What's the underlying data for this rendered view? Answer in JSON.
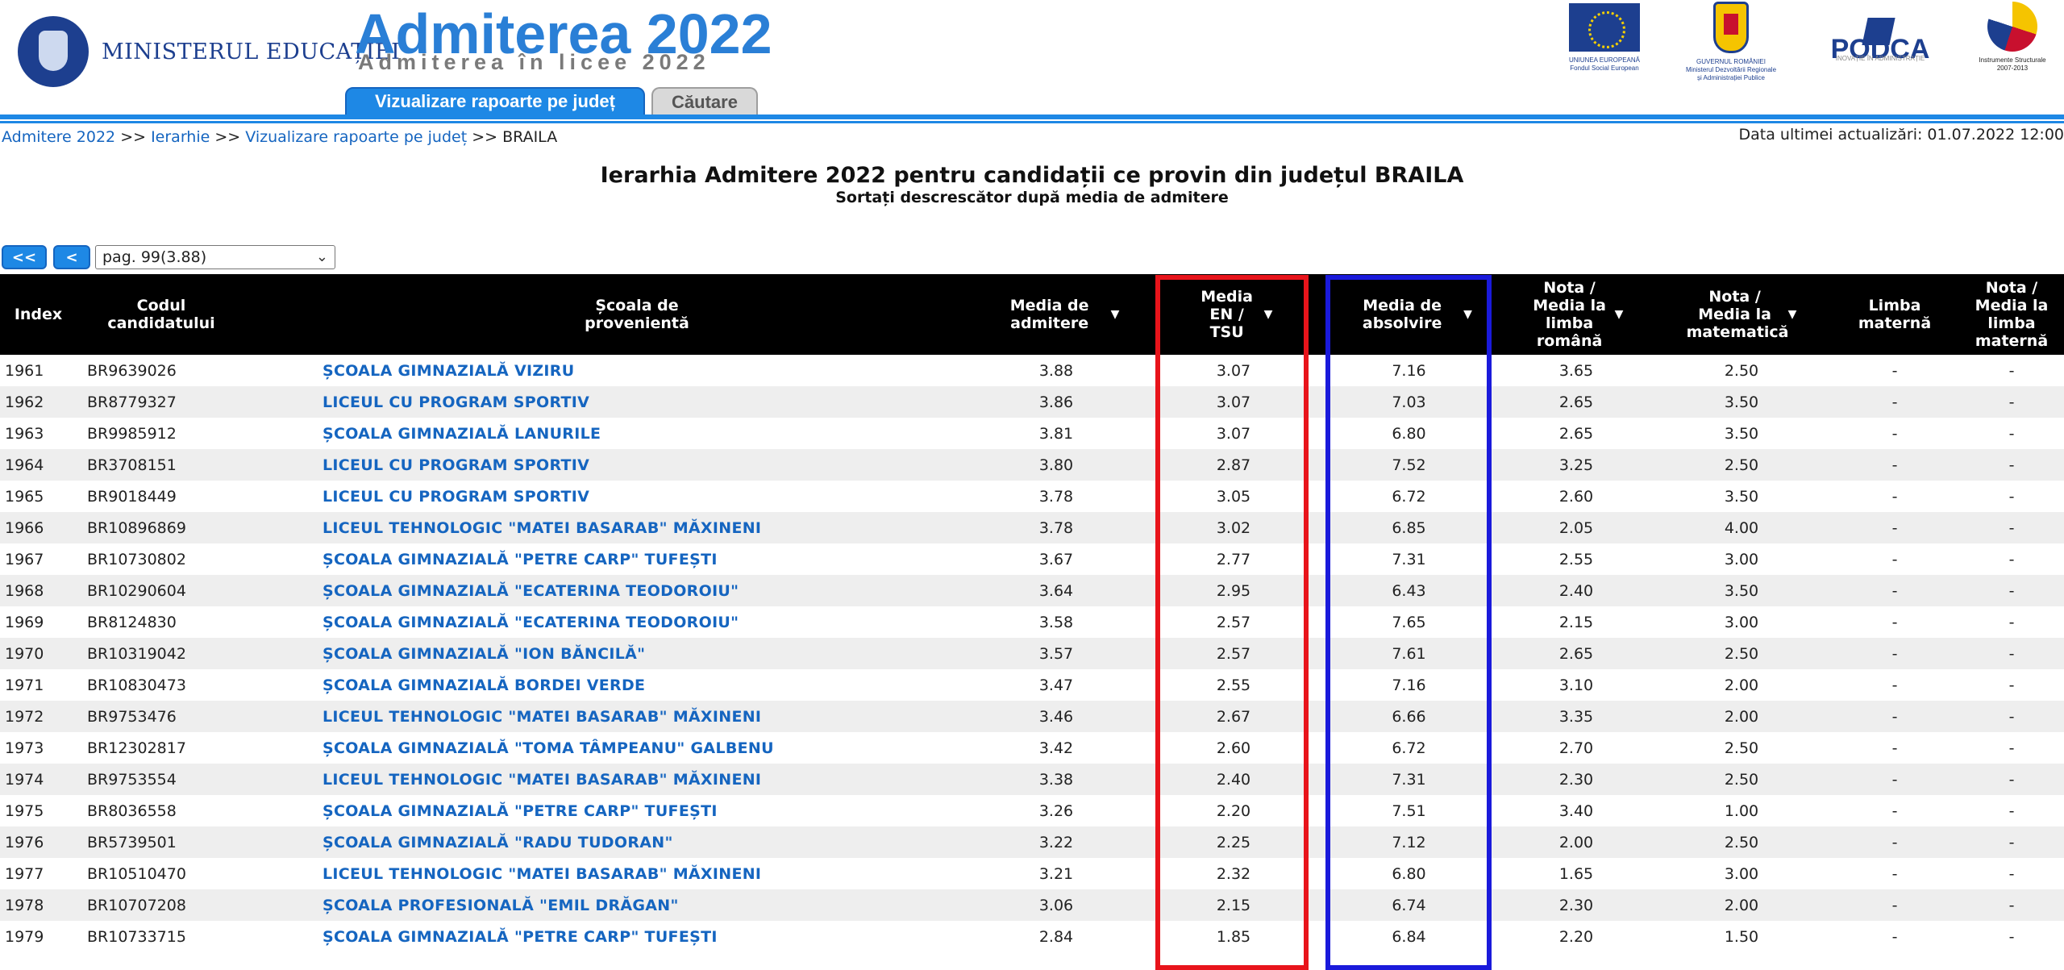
{
  "header": {
    "ministry": "MINISTERUL EDUCAȚIEI",
    "brand_title": "Admiterea 2022",
    "brand_subtitle": "Admiterea în licee 2022",
    "logos": {
      "eu_line1": "UNIUNEA EUROPEANĂ",
      "eu_line2": "Fondul Social European",
      "gov_line1": "GUVERNUL ROMÂNIEI",
      "gov_line2": "Ministerul Dezvoltării Regionale",
      "gov_line3": "și Administrației Publice",
      "podca_name": "PODCA",
      "podca_tagline": "INOVAȚIE ÎN ADMINISTRAȚIE",
      "is_line1": "Instrumente Structurale",
      "is_line2": "2007-2013"
    }
  },
  "tabs": {
    "active": "Vizualizare rapoarte pe județ",
    "inactive": "Căutare"
  },
  "breadcrumb": {
    "items": [
      "Admitere 2022",
      "Ierarhie",
      "Vizualizare rapoarte pe județ"
    ],
    "current": "BRAILA",
    "separator": ">>"
  },
  "last_update": "Data ultimei actualizări: 01.07.2022 12:00",
  "title": "Ierarhia Admitere 2022 pentru candidații ce provin din județul BRAILA",
  "subtitle": "Sortați descrescător după media de admitere",
  "pager": {
    "first": "<<",
    "prev": "<",
    "selected": "pag. 99(3.88)"
  },
  "columns": {
    "index": "Index",
    "code": "Codul candidatului",
    "school": "Școala de provenientă",
    "admission": "Media de admitere",
    "en": "Media EN / TSU",
    "grad": "Media de absolvire",
    "ro": "Nota / Media la limba română",
    "math": "Nota / Media la matematică",
    "lang": "Limba maternă",
    "lang_grade": "Nota / Media la limba maternă"
  },
  "rows": [
    [
      "1961",
      "BR9639026",
      "ȘCOALA GIMNAZIALĂ VIZIRU",
      "3.88",
      "3.07",
      "7.16",
      "3.65",
      "2.50",
      "-",
      "-"
    ],
    [
      "1962",
      "BR8779327",
      "LICEUL CU PROGRAM SPORTIV",
      "3.86",
      "3.07",
      "7.03",
      "2.65",
      "3.50",
      "-",
      "-"
    ],
    [
      "1963",
      "BR9985912",
      "ȘCOALA GIMNAZIALĂ LANURILE",
      "3.81",
      "3.07",
      "6.80",
      "2.65",
      "3.50",
      "-",
      "-"
    ],
    [
      "1964",
      "BR3708151",
      "LICEUL CU PROGRAM SPORTIV",
      "3.80",
      "2.87",
      "7.52",
      "3.25",
      "2.50",
      "-",
      "-"
    ],
    [
      "1965",
      "BR9018449",
      "LICEUL CU PROGRAM SPORTIV",
      "3.78",
      "3.05",
      "6.72",
      "2.60",
      "3.50",
      "-",
      "-"
    ],
    [
      "1966",
      "BR10896869",
      "LICEUL TEHNOLOGIC \"MATEI BASARAB\" MĂXINENI",
      "3.78",
      "3.02",
      "6.85",
      "2.05",
      "4.00",
      "-",
      "-"
    ],
    [
      "1967",
      "BR10730802",
      "ȘCOALA GIMNAZIALĂ \"PETRE CARP\" TUFEȘTI",
      "3.67",
      "2.77",
      "7.31",
      "2.55",
      "3.00",
      "-",
      "-"
    ],
    [
      "1968",
      "BR10290604",
      "ȘCOALA GIMNAZIALĂ \"ECATERINA TEODOROIU\"",
      "3.64",
      "2.95",
      "6.43",
      "2.40",
      "3.50",
      "-",
      "-"
    ],
    [
      "1969",
      "BR8124830",
      "ȘCOALA GIMNAZIALĂ \"ECATERINA TEODOROIU\"",
      "3.58",
      "2.57",
      "7.65",
      "2.15",
      "3.00",
      "-",
      "-"
    ],
    [
      "1970",
      "BR10319042",
      "ȘCOALA GIMNAZIALĂ \"ION BĂNCILĂ\"",
      "3.57",
      "2.57",
      "7.61",
      "2.65",
      "2.50",
      "-",
      "-"
    ],
    [
      "1971",
      "BR10830473",
      "ȘCOALA GIMNAZIALĂ BORDEI VERDE",
      "3.47",
      "2.55",
      "7.16",
      "3.10",
      "2.00",
      "-",
      "-"
    ],
    [
      "1972",
      "BR9753476",
      "LICEUL TEHNOLOGIC \"MATEI BASARAB\" MĂXINENI",
      "3.46",
      "2.67",
      "6.66",
      "3.35",
      "2.00",
      "-",
      "-"
    ],
    [
      "1973",
      "BR12302817",
      "ȘCOALA GIMNAZIALĂ \"TOMA TÂMPEANU\" GALBENU",
      "3.42",
      "2.60",
      "6.72",
      "2.70",
      "2.50",
      "-",
      "-"
    ],
    [
      "1974",
      "BR9753554",
      "LICEUL TEHNOLOGIC \"MATEI BASARAB\" MĂXINENI",
      "3.38",
      "2.40",
      "7.31",
      "2.30",
      "2.50",
      "-",
      "-"
    ],
    [
      "1975",
      "BR8036558",
      "ȘCOALA GIMNAZIALĂ \"PETRE CARP\" TUFEȘTI",
      "3.26",
      "2.20",
      "7.51",
      "3.40",
      "1.00",
      "-",
      "-"
    ],
    [
      "1976",
      "BR5739501",
      "ȘCOALA GIMNAZIALĂ \"RADU TUDORAN\"",
      "3.22",
      "2.25",
      "7.12",
      "2.00",
      "2.50",
      "-",
      "-"
    ],
    [
      "1977",
      "BR10510470",
      "LICEUL TEHNOLOGIC \"MATEI BASARAB\" MĂXINENI",
      "3.21",
      "2.32",
      "6.80",
      "1.65",
      "3.00",
      "-",
      "-"
    ],
    [
      "1978",
      "BR10707208",
      "ȘCOALA PROFESIONALĂ \"EMIL DRĂGAN\"",
      "3.06",
      "2.15",
      "6.74",
      "2.30",
      "2.00",
      "-",
      "-"
    ],
    [
      "1979",
      "BR10733715",
      "ȘCOALA GIMNAZIALĂ \"PETRE CARP\" TUFEȘTI",
      "2.84",
      "1.85",
      "6.84",
      "2.20",
      "1.50",
      "-",
      "-"
    ]
  ],
  "colors": {
    "accent": "#1e88e5",
    "link": "#1565c0",
    "highlight_red": "#e8141b",
    "highlight_blue": "#1a1adb"
  }
}
